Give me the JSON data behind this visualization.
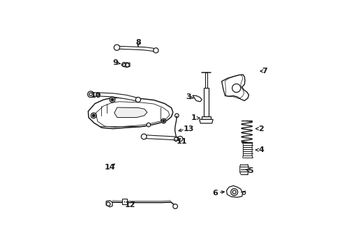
{
  "background_color": "#ffffff",
  "line_color": "#1a1a1a",
  "figsize": [
    4.9,
    3.6
  ],
  "dpi": 100,
  "labels": {
    "1": [
      0.62,
      0.545,
      0.648,
      0.545
    ],
    "2": [
      0.93,
      0.49,
      0.905,
      0.49
    ],
    "3": [
      0.595,
      0.655,
      0.623,
      0.65
    ],
    "4": [
      0.93,
      0.385,
      0.905,
      0.385
    ],
    "5": [
      0.87,
      0.27,
      0.85,
      0.27
    ],
    "6": [
      0.72,
      0.155,
      0.745,
      0.165
    ],
    "7": [
      0.955,
      0.79,
      0.93,
      0.79
    ],
    "8": [
      0.31,
      0.93,
      0.31,
      0.912
    ],
    "9": [
      0.195,
      0.83,
      0.22,
      0.83
    ],
    "10": [
      0.1,
      0.665,
      0.125,
      0.66
    ],
    "11": [
      0.53,
      0.43,
      0.51,
      0.445
    ],
    "12": [
      0.285,
      0.098,
      0.307,
      0.115
    ],
    "13": [
      0.59,
      0.49,
      0.59,
      0.468
    ],
    "14": [
      0.175,
      0.29,
      0.2,
      0.31
    ]
  }
}
